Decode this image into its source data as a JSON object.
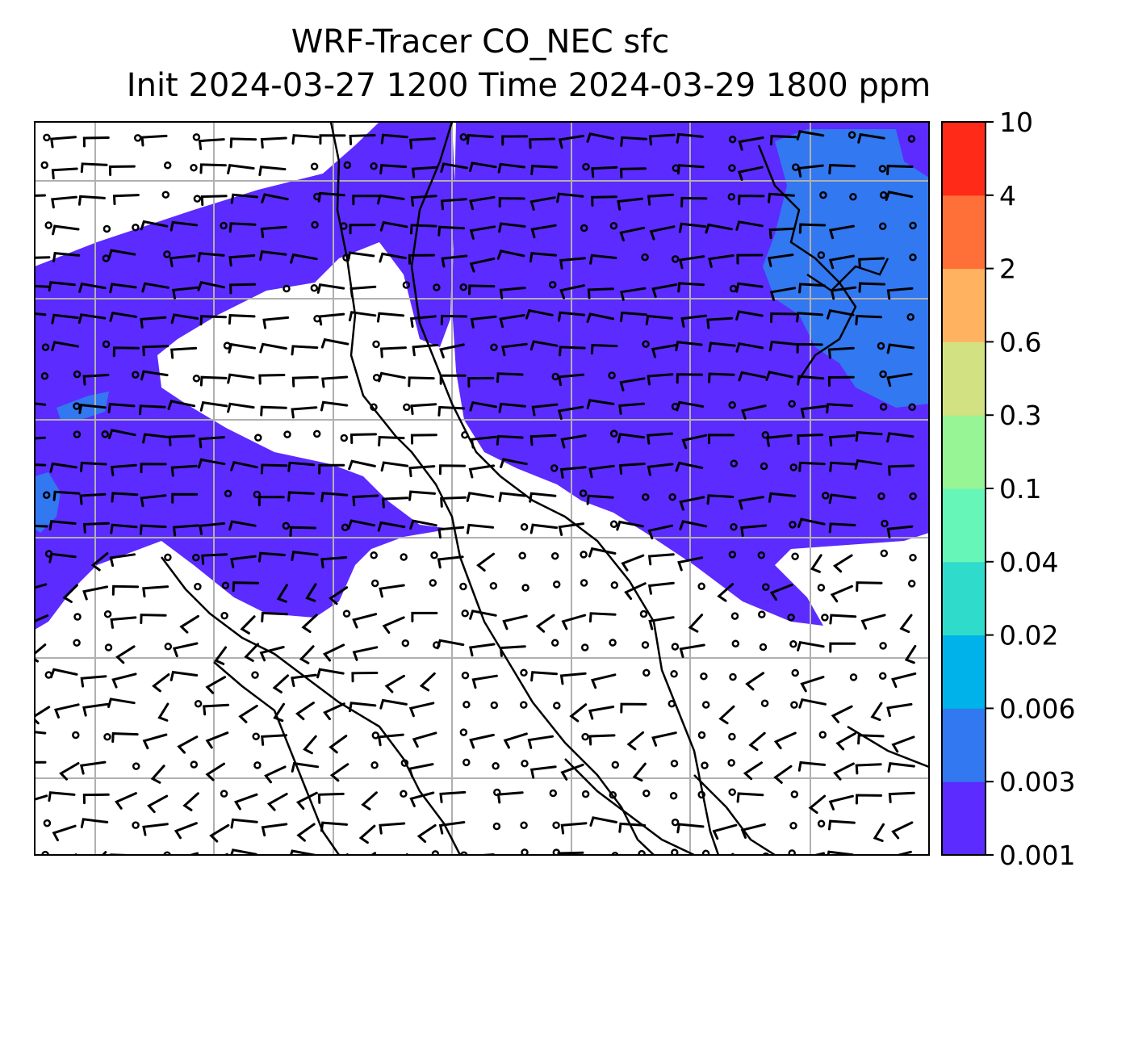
{
  "title": {
    "line1": "WRF-Tracer CO_NEC sfc",
    "line2": "Init 2024-03-27 1200 Time 2024-03-29 1800 ppm"
  },
  "colorbar": {
    "levels": [
      "0.001",
      "0.003",
      "0.006",
      "0.02",
      "0.04",
      "0.1",
      "0.3",
      "0.6",
      "2",
      "4",
      "10"
    ],
    "colors": [
      "#5b2bff",
      "#3278f0",
      "#00b2ea",
      "#2fdccb",
      "#66f7b8",
      "#97f596",
      "#d2e181",
      "#ffb361",
      "#ff7038",
      "#ff2a18"
    ]
  },
  "map_layers": {
    "contour_fill": "#5b2bff",
    "contour_fill_light": "#3278f0",
    "gridlines": "on",
    "coastlines": "on",
    "wind_barbs": "on"
  }
}
